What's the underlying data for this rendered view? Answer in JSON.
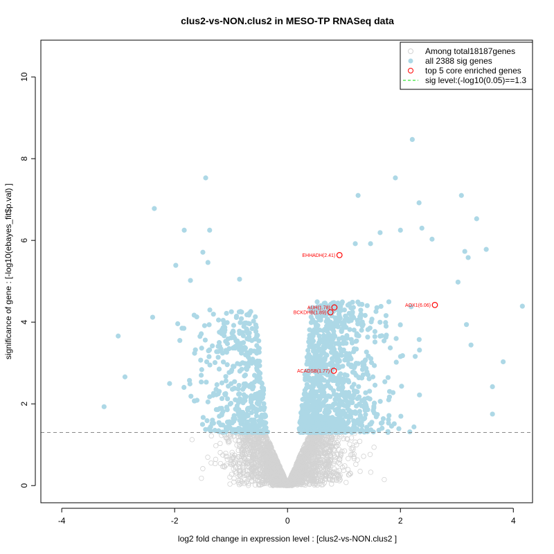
{
  "chart_data": {
    "type": "scatter",
    "title": "clus2-vs-NON.clus2 in MESO-TP RNASeq data",
    "xlabel": "log2 fold change in expression level : [clus2-vs-NON.clus2 ]",
    "ylabel": "significance of gene : [-log10(ebayes_fit$p.val) ]",
    "xlim": [
      -4.37,
      4.34
    ],
    "ylim": [
      -0.42,
      10.9
    ],
    "xticks": [
      -4,
      -2,
      0,
      2,
      4
    ],
    "yticks": [
      0,
      2,
      4,
      6,
      8,
      10
    ],
    "grid": false,
    "legend_position": "top-right",
    "legend": [
      {
        "label": "Among total18187genes",
        "marker": "open-circle",
        "color": "#d3d3d3"
      },
      {
        "label": "all 2388 sig genes",
        "marker": "filled-circle",
        "color": "#add8e6"
      },
      {
        "label": "top 5 core enriched genes",
        "marker": "open-circle",
        "color": "#ff0000"
      },
      {
        "label": "sig level:(-log10(0.05)==1.3",
        "marker": "dashed-line",
        "color": "#00dd00"
      }
    ],
    "sig_threshold": 1.3,
    "colors": {
      "nonsig": "#d3d3d3",
      "sig": "#add8e6",
      "top": "#ff0000",
      "threshold": "#888888"
    },
    "total_genes": 18187,
    "sig_genes": 2388,
    "sig_outliers": [
      [
        -3.25,
        1.93
      ],
      [
        -3.0,
        3.66
      ],
      [
        -2.88,
        2.66
      ],
      [
        -2.36,
        6.78
      ],
      [
        -1.45,
        7.53
      ],
      [
        -1.83,
        6.25
      ],
      [
        -1.38,
        6.25
      ],
      [
        -1.5,
        5.71
      ],
      [
        -1.41,
        5.46
      ],
      [
        -1.98,
        5.39
      ],
      [
        -1.72,
        5.02
      ],
      [
        -0.85,
        5.05
      ],
      [
        -2.39,
        4.12
      ],
      [
        1.25,
        7.1
      ],
      [
        2.21,
        8.47
      ],
      [
        1.91,
        7.53
      ],
      [
        2.33,
        6.92
      ],
      [
        3.08,
        7.1
      ],
      [
        3.35,
        6.53
      ],
      [
        2.0,
        6.25
      ],
      [
        3.52,
        5.78
      ],
      [
        3.14,
        5.73
      ],
      [
        3.2,
        5.58
      ],
      [
        3.02,
        4.98
      ],
      [
        4.16,
        4.39
      ],
      [
        3.25,
        3.44
      ],
      [
        3.82,
        3.03
      ],
      [
        3.63,
        2.42
      ],
      [
        3.63,
        1.75
      ],
      [
        2.38,
        6.3
      ],
      [
        2.56,
        6.03
      ],
      [
        1.64,
        6.19
      ],
      [
        1.47,
        5.92
      ],
      [
        1.2,
        5.92
      ]
    ],
    "top_genes": [
      {
        "label": "EHHADH(2.41)",
        "x": 0.92,
        "y": 5.64
      },
      {
        "label": "AUH(1.78)",
        "x": 0.83,
        "y": 4.36
      },
      {
        "label": "BCKDHB(1.89)",
        "x": 0.76,
        "y": 4.24
      },
      {
        "label": "AOX1(6.06)",
        "x": 2.61,
        "y": 4.42
      },
      {
        "label": "ACADSB(1.77)",
        "x": 0.82,
        "y": 2.81
      }
    ]
  }
}
